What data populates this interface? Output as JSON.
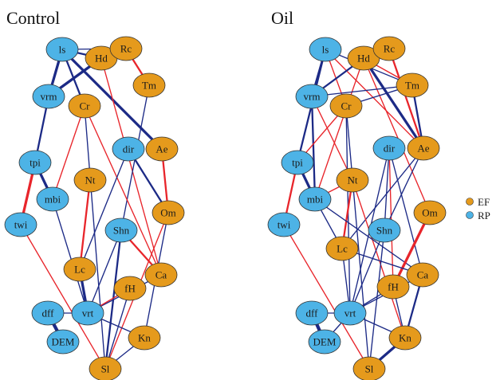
{
  "figure": {
    "colors": {
      "ef_fill": "#E59A1C",
      "rp_fill": "#4DB3E6",
      "node_stroke": "#333333",
      "positive_edge": "#E8252B",
      "negative_edge": "#1C2A86"
    },
    "legend": {
      "items": [
        {
          "label": "EF",
          "group": "EF"
        },
        {
          "label": "RP",
          "group": "RP"
        }
      ]
    },
    "panels": [
      {
        "title": "Control",
        "nodes": [
          {
            "id": "ls",
            "label": "ls",
            "group": "RP"
          },
          {
            "id": "Hd",
            "label": "Hd",
            "group": "EF"
          },
          {
            "id": "Rc",
            "label": "Rc",
            "group": "EF"
          },
          {
            "id": "Tm",
            "label": "Tm",
            "group": "EF"
          },
          {
            "id": "vrm",
            "label": "vrm",
            "group": "RP"
          },
          {
            "id": "Cr",
            "label": "Cr",
            "group": "EF"
          },
          {
            "id": "dir",
            "label": "dir",
            "group": "RP"
          },
          {
            "id": "Ae",
            "label": "Ae",
            "group": "EF"
          },
          {
            "id": "tpi",
            "label": "tpi",
            "group": "RP"
          },
          {
            "id": "Nt",
            "label": "Nt",
            "group": "EF"
          },
          {
            "id": "mbi",
            "label": "mbi",
            "group": "RP"
          },
          {
            "id": "Om",
            "label": "Om",
            "group": "EF"
          },
          {
            "id": "twi",
            "label": "twi",
            "group": "RP"
          },
          {
            "id": "Shn",
            "label": "Shn",
            "group": "RP"
          },
          {
            "id": "Lc",
            "label": "Lc",
            "group": "EF"
          },
          {
            "id": "Ca",
            "label": "Ca",
            "group": "EF"
          },
          {
            "id": "fH",
            "label": "fH",
            "group": "EF"
          },
          {
            "id": "dff",
            "label": "dff",
            "group": "RP"
          },
          {
            "id": "vrt",
            "label": "vrt",
            "group": "RP"
          },
          {
            "id": "DEM",
            "label": "DEM",
            "group": "RP"
          },
          {
            "id": "Kn",
            "label": "Kn",
            "group": "EF"
          },
          {
            "id": "Sl",
            "label": "Sl",
            "group": "EF"
          }
        ],
        "edges": [
          {
            "source": "ls",
            "target": "Hd",
            "sign": "neg",
            "weight": 2
          },
          {
            "source": "ls",
            "target": "vrm",
            "sign": "neg",
            "weight": 3
          },
          {
            "source": "ls",
            "target": "Ae",
            "sign": "neg",
            "weight": 3
          },
          {
            "source": "ls",
            "target": "Cr",
            "sign": "neg",
            "weight": 2
          },
          {
            "source": "ls",
            "target": "Rc",
            "sign": "neg",
            "weight": 1
          },
          {
            "source": "Hd",
            "target": "Rc",
            "sign": "neg",
            "weight": 1
          },
          {
            "source": "Hd",
            "target": "vrm",
            "sign": "neg",
            "weight": 3
          },
          {
            "source": "Hd",
            "target": "Ca",
            "sign": "pos",
            "weight": 1
          },
          {
            "source": "Rc",
            "target": "Tm",
            "sign": "pos",
            "weight": 2
          },
          {
            "source": "Tm",
            "target": "Shn",
            "sign": "neg",
            "weight": 1
          },
          {
            "source": "vrm",
            "target": "tpi",
            "sign": "neg",
            "weight": 2
          },
          {
            "source": "Cr",
            "target": "Sl",
            "sign": "neg",
            "weight": 1
          },
          {
            "source": "Cr",
            "target": "mbi",
            "sign": "pos",
            "weight": 1
          },
          {
            "source": "Cr",
            "target": "Ca",
            "sign": "pos",
            "weight": 1
          },
          {
            "source": "dir",
            "target": "Om",
            "sign": "neg",
            "weight": 2
          },
          {
            "source": "dir",
            "target": "Lc",
            "sign": "neg",
            "weight": 1
          },
          {
            "source": "Ae",
            "target": "Om",
            "sign": "pos",
            "weight": 2
          },
          {
            "source": "tpi",
            "target": "mbi",
            "sign": "neg",
            "weight": 3
          },
          {
            "source": "tpi",
            "target": "twi",
            "sign": "pos",
            "weight": 3
          },
          {
            "source": "mbi",
            "target": "vrt",
            "sign": "neg",
            "weight": 1
          },
          {
            "source": "Nt",
            "target": "Lc",
            "sign": "pos",
            "weight": 2
          },
          {
            "source": "twi",
            "target": "Sl",
            "sign": "pos",
            "weight": 1
          },
          {
            "source": "Om",
            "target": "Kn",
            "sign": "neg",
            "weight": 1
          },
          {
            "source": "Om",
            "target": "Sl",
            "sign": "pos",
            "weight": 1
          },
          {
            "source": "Shn",
            "target": "Ca",
            "sign": "pos",
            "weight": 2
          },
          {
            "source": "Shn",
            "target": "Sl",
            "sign": "neg",
            "weight": 2
          },
          {
            "source": "Shn",
            "target": "vrt",
            "sign": "neg",
            "weight": 1
          },
          {
            "source": "Lc",
            "target": "vrt",
            "sign": "neg",
            "weight": 3
          },
          {
            "source": "Ca",
            "target": "vrt",
            "sign": "neg",
            "weight": 1
          },
          {
            "source": "fH",
            "target": "Sl",
            "sign": "neg",
            "weight": 1
          },
          {
            "source": "dff",
            "target": "vrt",
            "sign": "neg",
            "weight": 1
          },
          {
            "source": "dff",
            "target": "DEM",
            "sign": "neg",
            "weight": 4
          },
          {
            "source": "vrt",
            "target": "Kn",
            "sign": "neg",
            "weight": 1
          },
          {
            "source": "vrt",
            "target": "fH",
            "sign": "pos",
            "weight": 1
          },
          {
            "source": "Kn",
            "target": "Sl",
            "sign": "neg",
            "weight": 1
          }
        ]
      },
      {
        "title": "Oil",
        "nodes": [
          {
            "id": "ls",
            "label": "ls",
            "group": "RP"
          },
          {
            "id": "Hd",
            "label": "Hd",
            "group": "EF"
          },
          {
            "id": "Rc",
            "label": "Rc",
            "group": "EF"
          },
          {
            "id": "Tm",
            "label": "Tm",
            "group": "EF"
          },
          {
            "id": "vrm",
            "label": "vrm",
            "group": "RP"
          },
          {
            "id": "Cr",
            "label": "Cr",
            "group": "EF"
          },
          {
            "id": "dir",
            "label": "dir",
            "group": "RP"
          },
          {
            "id": "Ae",
            "label": "Ae",
            "group": "EF"
          },
          {
            "id": "tpi",
            "label": "tpi",
            "group": "RP"
          },
          {
            "id": "Nt",
            "label": "Nt",
            "group": "EF"
          },
          {
            "id": "mbi",
            "label": "mbi",
            "group": "RP"
          },
          {
            "id": "Om",
            "label": "Om",
            "group": "EF"
          },
          {
            "id": "twi",
            "label": "twi",
            "group": "RP"
          },
          {
            "id": "Shn",
            "label": "Shn",
            "group": "RP"
          },
          {
            "id": "Lc",
            "label": "Lc",
            "group": "EF"
          },
          {
            "id": "Ca",
            "label": "Ca",
            "group": "EF"
          },
          {
            "id": "fH",
            "label": "fH",
            "group": "EF"
          },
          {
            "id": "dff",
            "label": "dff",
            "group": "RP"
          },
          {
            "id": "vrt",
            "label": "vrt",
            "group": "RP"
          },
          {
            "id": "DEM",
            "label": "DEM",
            "group": "RP"
          },
          {
            "id": "Kn",
            "label": "Kn",
            "group": "EF"
          },
          {
            "id": "Sl",
            "label": "Sl",
            "group": "EF"
          }
        ],
        "edges": [
          {
            "source": "ls",
            "target": "vrm",
            "sign": "neg",
            "weight": 2
          },
          {
            "source": "ls",
            "target": "Tm",
            "sign": "neg",
            "weight": 1
          },
          {
            "source": "ls",
            "target": "Cr",
            "sign": "pos",
            "weight": 1
          },
          {
            "source": "ls",
            "target": "Ae",
            "sign": "pos",
            "weight": 1
          },
          {
            "source": "ls",
            "target": "tpi",
            "sign": "neg",
            "weight": 2
          },
          {
            "source": "Hd",
            "target": "Rc",
            "sign": "neg",
            "weight": 1
          },
          {
            "source": "Hd",
            "target": "Ae",
            "sign": "neg",
            "weight": 3
          },
          {
            "source": "Hd",
            "target": "vrm",
            "sign": "neg",
            "weight": 2
          },
          {
            "source": "Hd",
            "target": "Tm",
            "sign": "pos",
            "weight": 1
          },
          {
            "source": "Hd",
            "target": "mbi",
            "sign": "pos",
            "weight": 1
          },
          {
            "source": "Hd",
            "target": "Om",
            "sign": "pos",
            "weight": 1
          },
          {
            "source": "Rc",
            "target": "Ae",
            "sign": "pos",
            "weight": 2
          },
          {
            "source": "Tm",
            "target": "vrm",
            "sign": "neg",
            "weight": 1
          },
          {
            "source": "Tm",
            "target": "Cr",
            "sign": "neg",
            "weight": 1
          },
          {
            "source": "Tm",
            "target": "Ae",
            "sign": "neg",
            "weight": 2
          },
          {
            "source": "vrm",
            "target": "Nt",
            "sign": "pos",
            "weight": 1
          },
          {
            "source": "vrm",
            "target": "mbi",
            "sign": "neg",
            "weight": 2
          },
          {
            "source": "Cr",
            "target": "tpi",
            "sign": "pos",
            "weight": 1
          },
          {
            "source": "Cr",
            "target": "vrt",
            "sign": "neg",
            "weight": 1
          },
          {
            "source": "Cr",
            "target": "Sl",
            "sign": "neg",
            "weight": 1
          },
          {
            "source": "dir",
            "target": "Shn",
            "sign": "neg",
            "weight": 1
          },
          {
            "source": "dir",
            "target": "vrt",
            "sign": "neg",
            "weight": 1
          },
          {
            "source": "dir",
            "target": "Ca",
            "sign": "neg",
            "weight": 1
          },
          {
            "source": "dir",
            "target": "fH",
            "sign": "pos",
            "weight": 1
          },
          {
            "source": "Ae",
            "target": "Lc",
            "sign": "neg",
            "weight": 1
          },
          {
            "source": "Ae",
            "target": "Shn",
            "sign": "neg",
            "weight": 1
          },
          {
            "source": "tpi",
            "target": "mbi",
            "sign": "neg",
            "weight": 3
          },
          {
            "source": "tpi",
            "target": "twi",
            "sign": "pos",
            "weight": 2
          },
          {
            "source": "Nt",
            "target": "Lc",
            "sign": "pos",
            "weight": 2
          },
          {
            "source": "Nt",
            "target": "mbi",
            "sign": "pos",
            "weight": 1
          },
          {
            "source": "Nt",
            "target": "Kn",
            "sign": "pos",
            "weight": 1
          },
          {
            "source": "mbi",
            "target": "Ca",
            "sign": "neg",
            "weight": 1
          },
          {
            "source": "mbi",
            "target": "Lc",
            "sign": "neg",
            "weight": 1
          },
          {
            "source": "Om",
            "target": "fH",
            "sign": "pos",
            "weight": 3
          },
          {
            "source": "twi",
            "target": "Sl",
            "sign": "pos",
            "weight": 1
          },
          {
            "source": "Shn",
            "target": "vrt",
            "sign": "neg",
            "weight": 1
          },
          {
            "source": "Shn",
            "target": "Sl",
            "sign": "neg",
            "weight": 1
          },
          {
            "source": "Lc",
            "target": "Ca",
            "sign": "neg",
            "weight": 1
          },
          {
            "source": "Lc",
            "target": "vrt",
            "sign": "neg",
            "weight": 1
          },
          {
            "source": "Ca",
            "target": "Kn",
            "sign": "neg",
            "weight": 2
          },
          {
            "source": "Ca",
            "target": "vrt",
            "sign": "neg",
            "weight": 1
          },
          {
            "source": "fH",
            "target": "vrt",
            "sign": "neg",
            "weight": 1
          },
          {
            "source": "fH",
            "target": "Kn",
            "sign": "neg",
            "weight": 1
          },
          {
            "source": "dff",
            "target": "DEM",
            "sign": "neg",
            "weight": 4
          },
          {
            "source": "dff",
            "target": "vrt",
            "sign": "neg",
            "weight": 1
          },
          {
            "source": "vrt",
            "target": "Kn",
            "sign": "neg",
            "weight": 1
          },
          {
            "source": "vrt",
            "target": "DEM",
            "sign": "neg",
            "weight": 1
          },
          {
            "source": "Kn",
            "target": "Sl",
            "sign": "neg",
            "weight": 3
          }
        ]
      }
    ]
  }
}
